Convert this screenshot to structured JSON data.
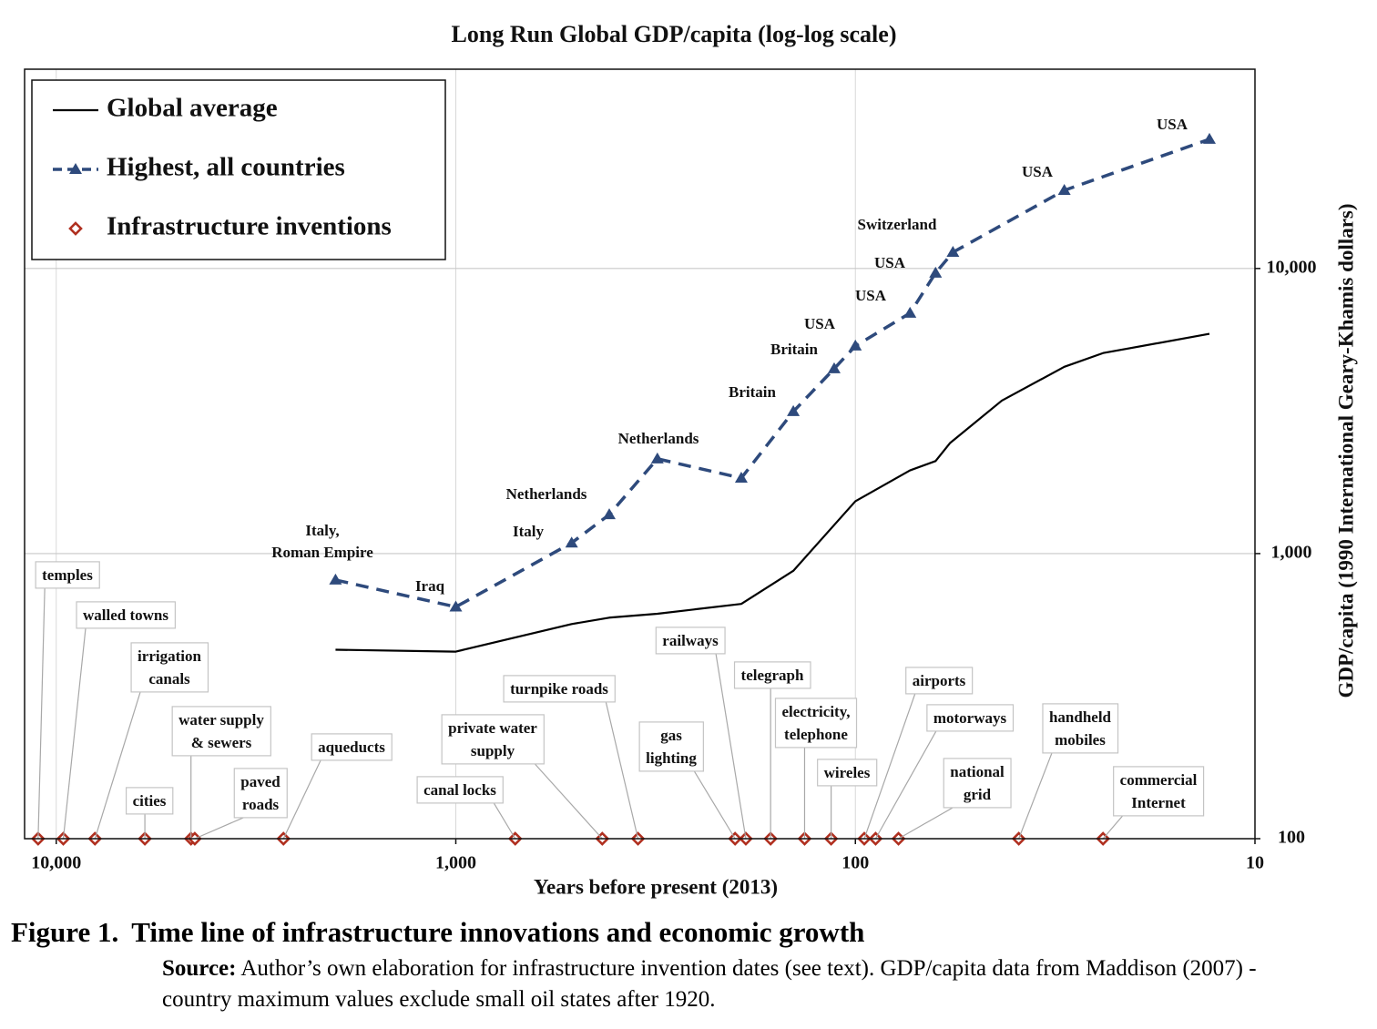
{
  "chart_data": {
    "type": "line",
    "title": "Long Run Global GDP/capita (log-log scale)",
    "x_label": "Years before present (2013)",
    "y_label": "GDP/capita (1990 International Geary-Khamis dollars)",
    "xscale": "log",
    "yscale": "log",
    "xlim": [
      12000,
      10
    ],
    "ylim": [
      100,
      50000
    ],
    "xticks": [
      {
        "value": 10000,
        "label": "10,000"
      },
      {
        "value": 1000,
        "label": "1,000"
      },
      100,
      10
    ],
    "yticks": [
      100,
      {
        "value": 1000,
        "label": "1,000"
      },
      {
        "value": 10000,
        "label": "10,000"
      }
    ],
    "y_axis_side": "right",
    "grid": true,
    "legend": "upper left",
    "series": [
      {
        "name": "Global average",
        "type": "line",
        "color": "#000000",
        "dash": false,
        "marker": null,
        "x": [
          2000,
          1000,
          513,
          413,
          313,
          193,
          143,
          100,
          73,
          63,
          58,
          43,
          30,
          24,
          13
        ],
        "values": [
          460,
          453,
          566,
          596,
          615,
          666,
          870,
          1526,
          1958,
          2111,
          2440,
          3440,
          4520,
          5050,
          5900
        ]
      },
      {
        "name": "Highest, all countries",
        "type": "line",
        "color": "#2e4a7c",
        "dash": true,
        "marker": "triangle",
        "x": [
          2000,
          1000,
          513,
          413,
          313,
          193,
          143,
          113,
          100,
          73,
          63,
          57,
          30,
          13
        ],
        "values": [
          808,
          650,
          1090,
          1370,
          2150,
          1840,
          3150,
          4450,
          5350,
          6970,
          9640,
          11400,
          18800,
          28400
        ],
        "point_labels": [
          [
            "Italy,",
            "Roman Empire"
          ],
          "Iraq",
          "Italy",
          "Netherlands",
          "Netherlands",
          null,
          "Britain",
          "Britain",
          "USA",
          "USA",
          "USA",
          "Switzerland",
          "USA",
          "USA"
        ]
      },
      {
        "name": "Infrastructure inventions",
        "type": "scatter",
        "color": "#b03020",
        "marker": "diamond",
        "x": [
          11100,
          9600,
          8000,
          6000,
          4600,
          4500,
          2700,
          710,
          430,
          350,
          200,
          188,
          163,
          134,
          115,
          95,
          89,
          78,
          39,
          24
        ],
        "values": [
          100,
          100,
          100,
          100,
          100,
          100,
          100,
          100,
          100,
          100,
          100,
          100,
          100,
          100,
          100,
          100,
          100,
          100,
          100,
          100
        ],
        "point_labels": [
          "temples",
          "walled towns",
          [
            "irrigation",
            "canals"
          ],
          "cities",
          [
            "water supply",
            "& sewers"
          ],
          [
            "paved",
            "roads"
          ],
          "aqueducts",
          "canal locks",
          [
            "private water",
            "supply"
          ],
          "turnpike roads",
          [
            "gas",
            "lighting"
          ],
          "railways",
          "telegraph",
          [
            "electricity,",
            "telephone"
          ],
          "wireles",
          "airports",
          "motorways",
          [
            "national",
            "grid"
          ],
          [
            "handheld",
            "mobiles"
          ],
          [
            "commercial",
            "Internet"
          ]
        ]
      }
    ]
  },
  "figure_caption": {
    "label": "Figure 1.",
    "title": "Time line of infrastructure innovations and economic growth",
    "source_label": "Source:",
    "source_text": "Author’s own elaboration for infrastructure invention dates (see text).  GDP/capita data from Maddison (2007) - country maximum values exclude small oil states after 1920."
  }
}
